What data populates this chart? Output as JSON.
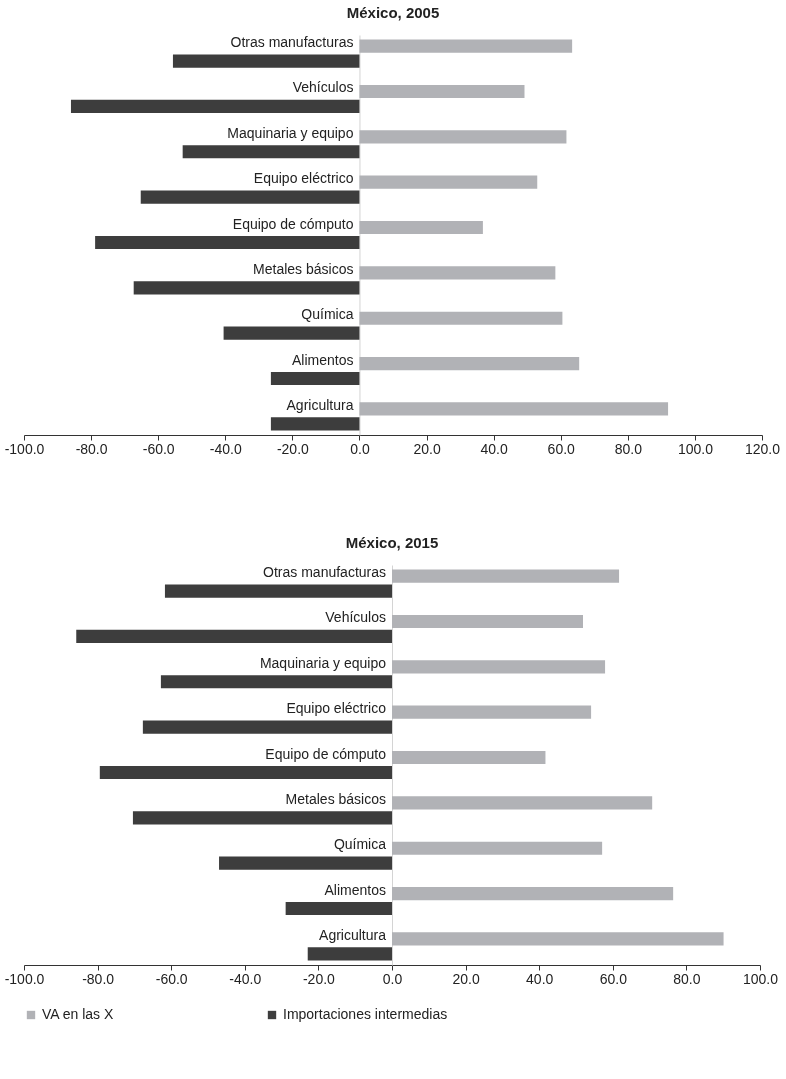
{
  "chart_data": [
    {
      "type": "bar",
      "title": "México, 2005",
      "orientation": "horizontal",
      "categories": [
        "Otras manufacturas",
        "Vehículos",
        "Maquinaria y equipo",
        "Equipo eléctrico",
        "Equipo de cómputo",
        "Metales básicos",
        "Química",
        "Alimentos",
        "Agricultura"
      ],
      "series": [
        {
          "name": "VA en las X",
          "color": "#b1b2b6",
          "values": [
            63.4,
            49.2,
            61.7,
            53.0,
            36.8,
            58.4,
            60.5,
            65.5,
            92.0
          ]
        },
        {
          "name": "Importaciones intermedias",
          "color": "#3d3d3d",
          "values": [
            -55.6,
            -86.0,
            -52.7,
            -65.2,
            -78.8,
            -67.3,
            -40.5,
            -26.4,
            -26.4
          ]
        }
      ],
      "xlim": [
        -100,
        120
      ],
      "xticks": [
        {
          "value": -100,
          "label": "-100.0"
        },
        {
          "value": -80,
          "label": "-80.0"
        },
        {
          "value": -60,
          "label": "-60.0"
        },
        {
          "value": -40,
          "label": "-40.0"
        },
        {
          "value": -20,
          "label": "-20.0"
        },
        {
          "value": 0,
          "label": "0.0"
        },
        {
          "value": 20,
          "label": "20.0"
        },
        {
          "value": 40,
          "label": "40.0"
        },
        {
          "value": 60,
          "label": "60.0"
        },
        {
          "value": 80,
          "label": "80.0"
        },
        {
          "value": 100,
          "label": "100.0"
        },
        {
          "value": 120,
          "label": "120.0"
        }
      ],
      "grid": false,
      "legend": "bottom"
    },
    {
      "type": "bar",
      "title": "México, 2015",
      "orientation": "horizontal",
      "categories": [
        "Otras manufacturas",
        "Vehículos",
        "Maquinaria y equipo",
        "Equipo eléctrico",
        "Equipo de cómputo",
        "Metales básicos",
        "Química",
        "Alimentos",
        "Agricultura"
      ],
      "series": [
        {
          "name": "VA en las X",
          "color": "#b1b2b6",
          "values": [
            61.7,
            51.9,
            57.9,
            54.1,
            41.7,
            70.7,
            57.1,
            76.4,
            90.1
          ]
        },
        {
          "name": "Importaciones intermedias",
          "color": "#3d3d3d",
          "values": [
            -61.7,
            -85.8,
            -62.8,
            -67.7,
            -79.4,
            -70.4,
            -47.0,
            -28.9,
            -22.9
          ]
        }
      ],
      "xlim": [
        -100,
        100
      ],
      "xticks": [
        {
          "value": -100,
          "label": "-100.0"
        },
        {
          "value": -80,
          "label": "-80.0"
        },
        {
          "value": -60,
          "label": "-60.0"
        },
        {
          "value": -40,
          "label": "-40.0"
        },
        {
          "value": -20,
          "label": "-20.0"
        },
        {
          "value": 0,
          "label": "0.0"
        },
        {
          "value": 20,
          "label": "20.0"
        },
        {
          "value": 40,
          "label": "40.0"
        },
        {
          "value": 60,
          "label": "60.0"
        },
        {
          "value": 80,
          "label": "80.0"
        },
        {
          "value": 100,
          "label": "100.0"
        }
      ],
      "grid": false,
      "legend": "bottom"
    }
  ]
}
